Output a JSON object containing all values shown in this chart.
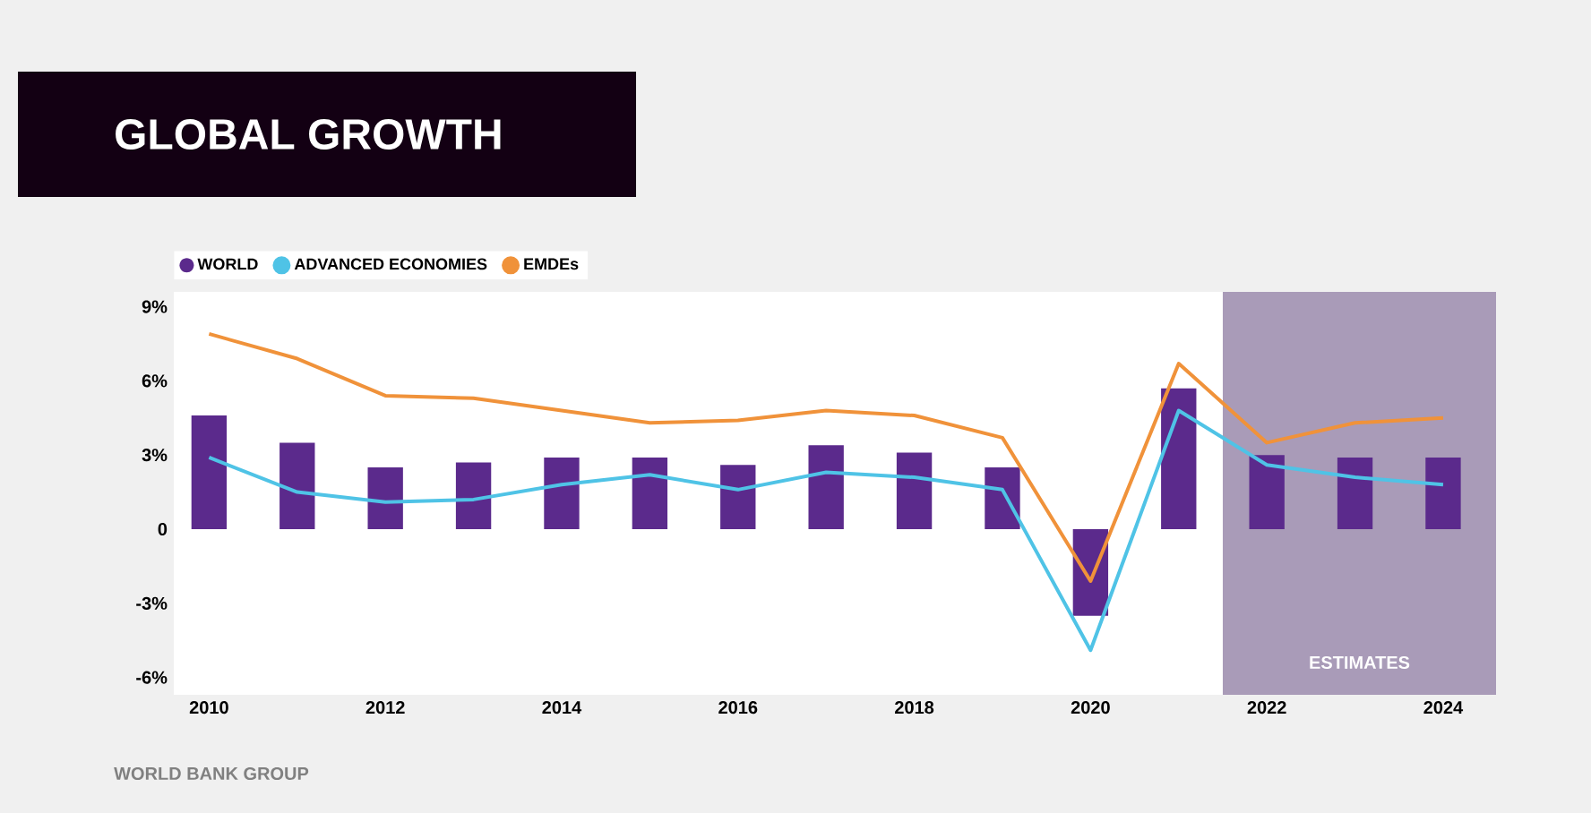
{
  "chart_data": {
    "type": "bar",
    "title": "GLOBAL GROWTH",
    "x": [
      2010,
      2011,
      2012,
      2013,
      2014,
      2015,
      2016,
      2017,
      2018,
      2019,
      2020,
      2021,
      2022,
      2023,
      2024
    ],
    "series": [
      {
        "name": "WORLD",
        "color": "#5b2a8c",
        "values": [
          4.6,
          3.5,
          2.5,
          2.7,
          2.9,
          2.9,
          2.6,
          3.4,
          3.1,
          2.5,
          -3.5,
          5.7,
          3.0,
          2.9,
          2.9
        ]
      },
      {
        "name": "ADVANCED ECONOMIES",
        "color": "#4fc3e6",
        "type": "line",
        "values": [
          2.9,
          1.5,
          1.1,
          1.2,
          1.8,
          2.2,
          1.6,
          2.3,
          2.1,
          1.6,
          -4.9,
          4.8,
          2.6,
          2.1,
          1.8
        ]
      },
      {
        "name": "EMDEs",
        "color": "#f0923a",
        "type": "line",
        "values": [
          7.9,
          6.9,
          5.4,
          5.3,
          4.8,
          4.3,
          4.4,
          4.8,
          4.6,
          3.7,
          -2.1,
          6.7,
          3.5,
          4.3,
          4.5
        ]
      }
    ],
    "xlim": [
      2009.6,
      2024.6
    ],
    "xticks": [
      2010,
      2012,
      2014,
      2016,
      2018,
      2020,
      2022,
      2024
    ],
    "ylim": [
      -6.7,
      9.6
    ],
    "yticks": [
      {
        "value": -6,
        "label": "-6%"
      },
      {
        "value": -3,
        "label": "-3%"
      },
      0,
      {
        "value": 3,
        "label": "3%"
      },
      {
        "value": 6,
        "label": "6%"
      },
      {
        "value": 9,
        "label": "9%"
      }
    ],
    "bands": [
      {
        "axis": "x",
        "from": 2021.5,
        "to": 2024.6,
        "label": "ESTIMATES",
        "color": "#a99bb8"
      }
    ],
    "legend": "top left",
    "marker": "none",
    "line_style": "solid",
    "annotations": [
      "WORLD BANK GROUP"
    ]
  }
}
